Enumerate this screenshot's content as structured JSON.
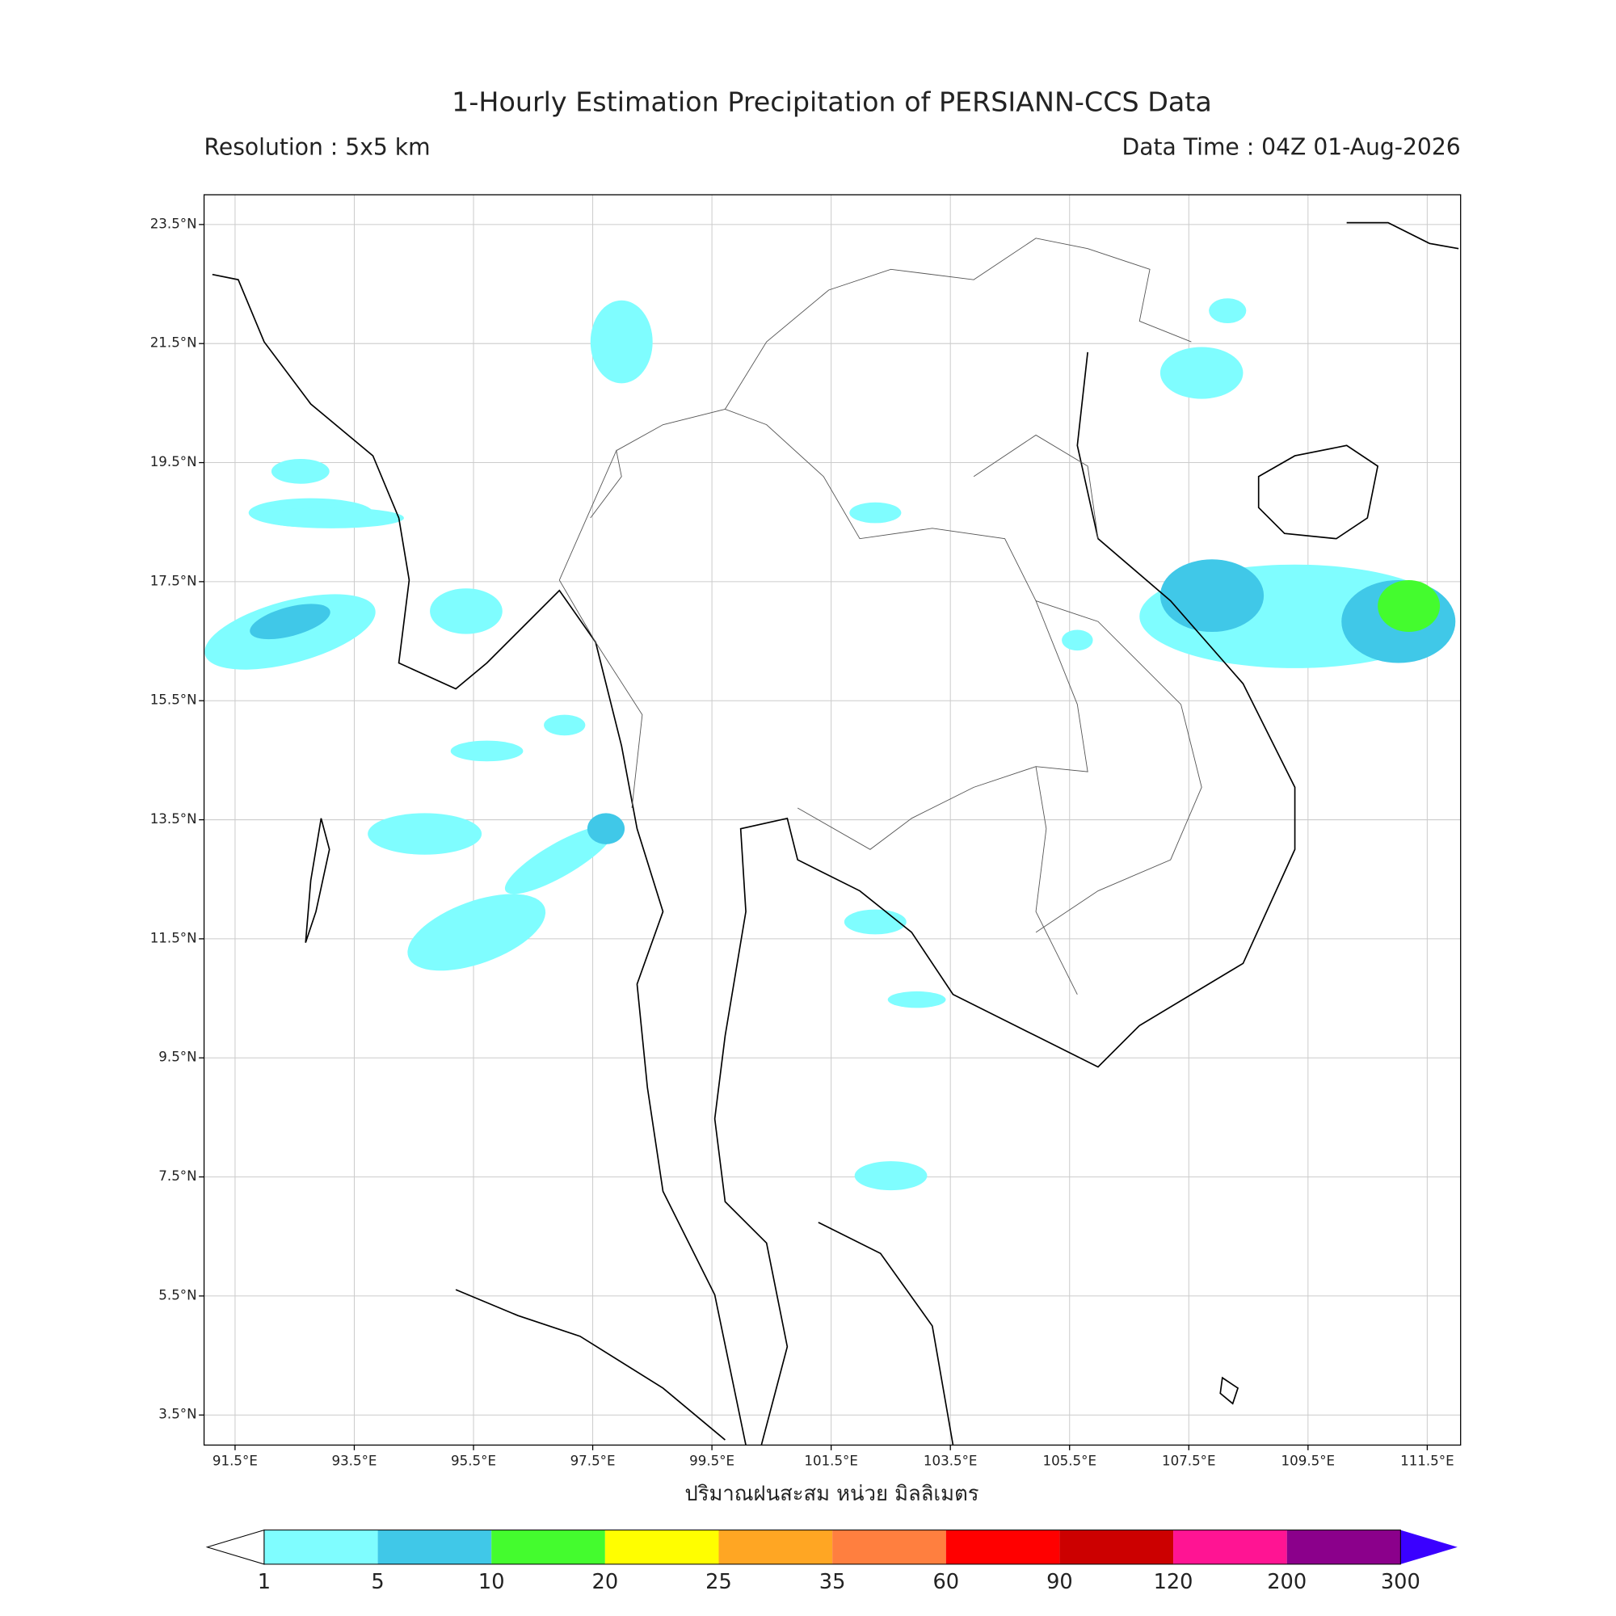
{
  "title": "1-Hourly Estimation Precipitation of PERSIANN-CCS Data",
  "resolution": "Resolution : 5x5 km",
  "data_time": "Data Time : 04Z 01-Aug-2026",
  "map": {
    "lonlim": [
      90.98,
      112.06
    ],
    "latlim": [
      2.995,
      24.0
    ],
    "lat_ticks": [
      {
        "value": 23.5,
        "label": "23.5°N"
      },
      {
        "value": 21.5,
        "label": "21.5°N"
      },
      {
        "value": 19.5,
        "label": "19.5°N"
      },
      {
        "value": 17.5,
        "label": "17.5°N"
      },
      {
        "value": 15.5,
        "label": "15.5°N"
      },
      {
        "value": 13.5,
        "label": "13.5°N"
      },
      {
        "value": 11.5,
        "label": "11.5°N"
      },
      {
        "value": 9.5,
        "label": "9.5°N"
      },
      {
        "value": 7.5,
        "label": "7.5°N"
      },
      {
        "value": 5.5,
        "label": "5.5°N"
      },
      {
        "value": 3.5,
        "label": "3.5°N"
      }
    ],
    "lon_ticks": [
      {
        "value": 91.5,
        "label": "91.5°E"
      },
      {
        "value": 93.5,
        "label": "93.5°E"
      },
      {
        "value": 95.5,
        "label": "95.5°E"
      },
      {
        "value": 97.5,
        "label": "97.5°E"
      },
      {
        "value": 99.5,
        "label": "99.5°E"
      },
      {
        "value": 101.5,
        "label": "101.5°E"
      },
      {
        "value": 103.5,
        "label": "103.5°E"
      },
      {
        "value": 105.5,
        "label": "105.5°E"
      },
      {
        "value": 107.5,
        "label": "107.5°E"
      },
      {
        "value": 109.5,
        "label": "109.5°E"
      },
      {
        "value": 111.5,
        "label": "111.5°E"
      }
    ],
    "grid": true
  },
  "colorbar": {
    "label": "ปริมาณฝนสะสม หน่วย มิลลิเมตร",
    "levels": [
      1,
      5,
      10,
      20,
      25,
      35,
      60,
      90,
      120,
      200,
      300
    ],
    "colors": [
      "#7ffdff",
      "#40c8e8",
      "#44fc2e",
      "#fffe00",
      "#ffa623",
      "#ff7f3f",
      "#ff0000",
      "#cc0000",
      "#ff1493",
      "#8b008b"
    ],
    "under_color": "#ffffff",
    "over_color": "#3a00ff"
  }
}
